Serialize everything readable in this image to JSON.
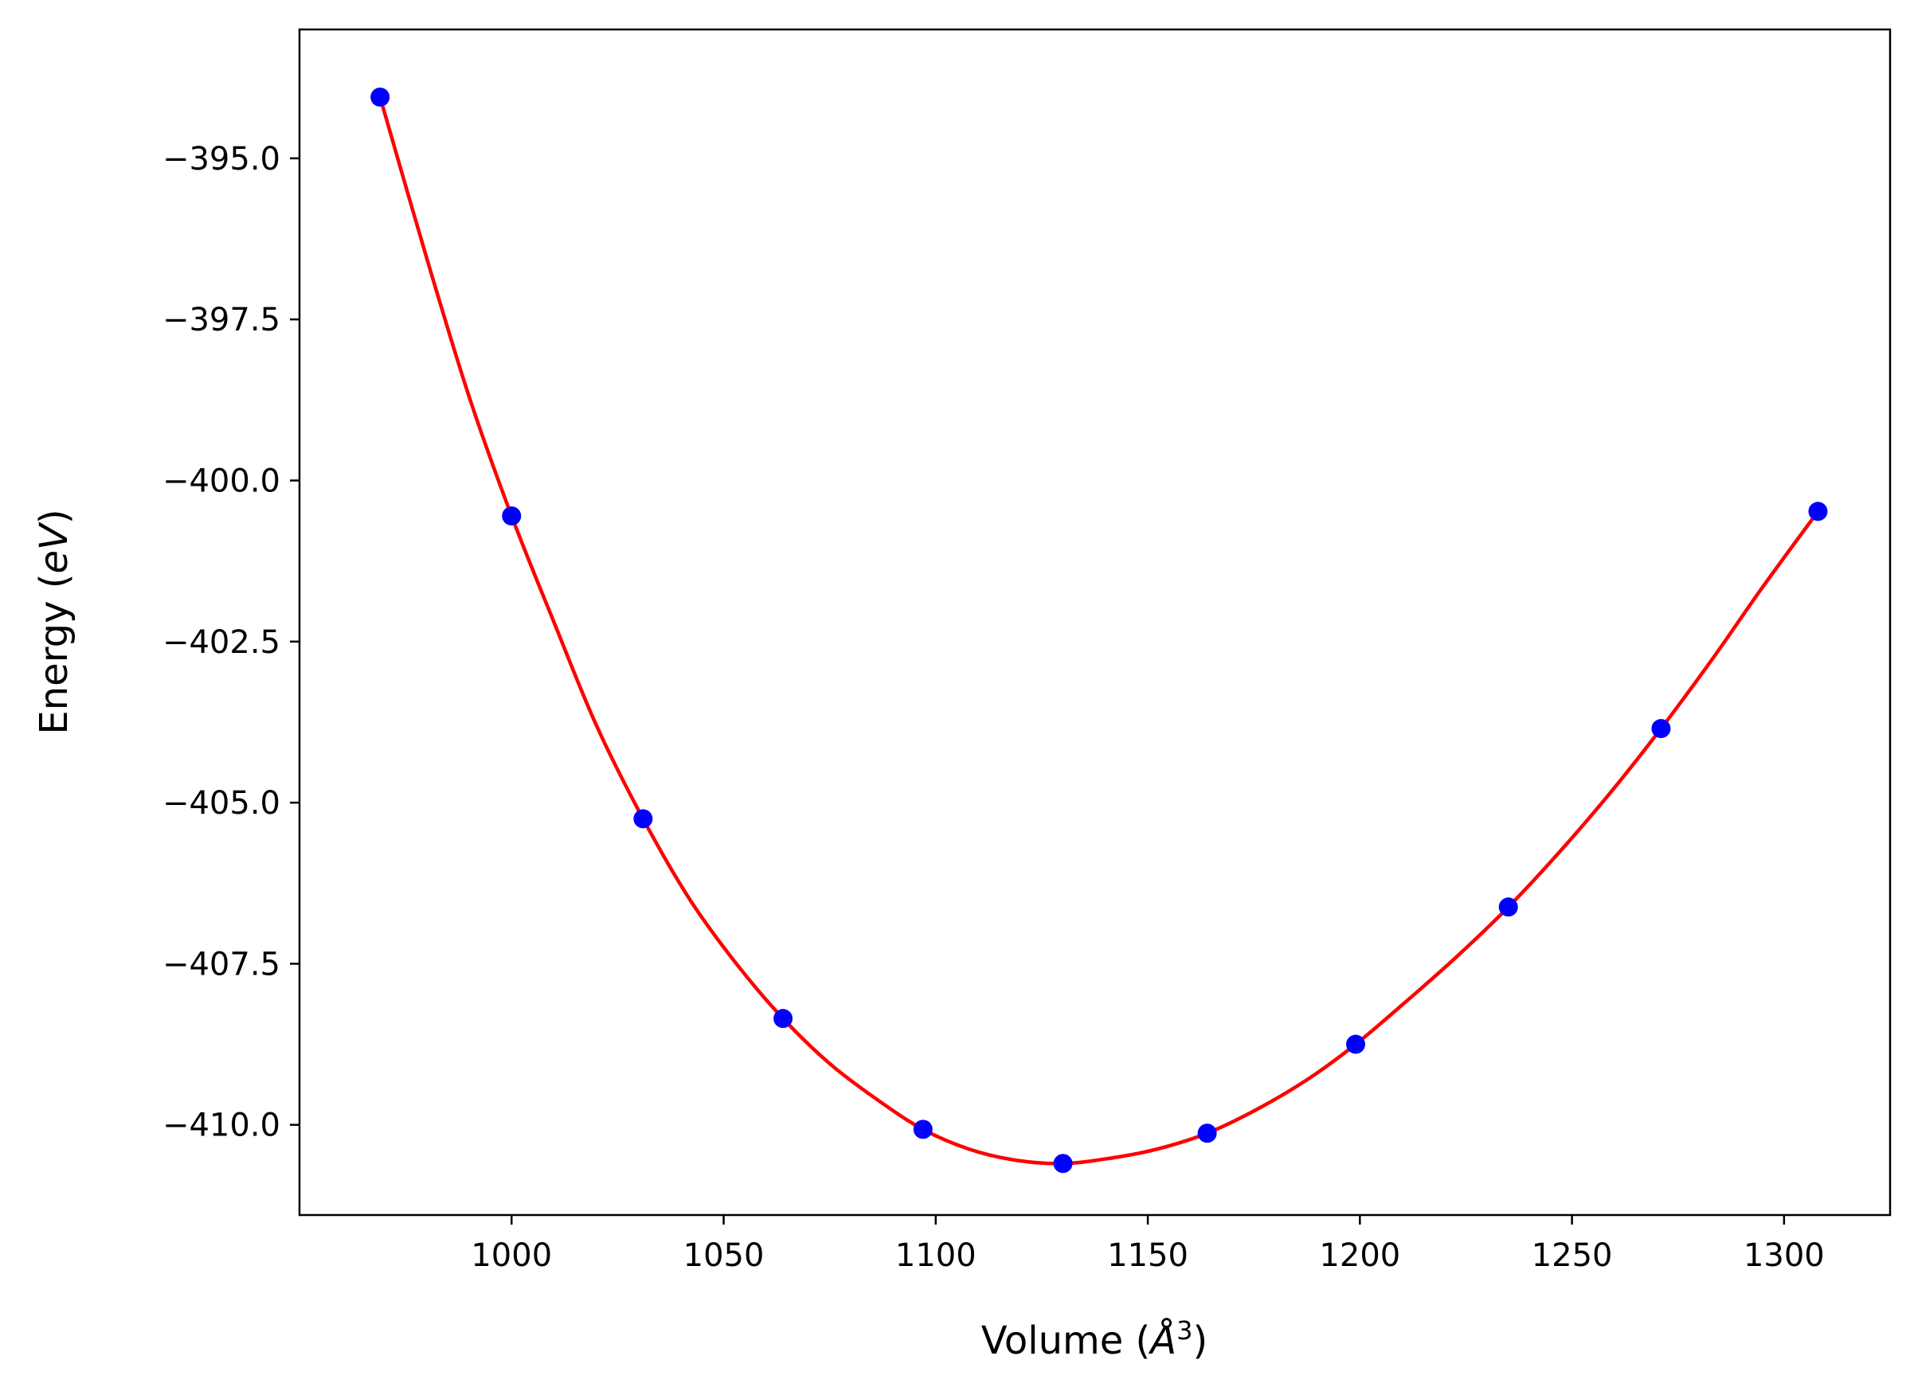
{
  "chart_data": {
    "type": "scatter",
    "xlabel": {
      "prefix": "Volume (",
      "italic": "Å",
      "superscript": "3",
      "suffix": ")"
    },
    "ylabel": {
      "prefix": "Energy (",
      "italic": "eV",
      "suffix": ")"
    },
    "xlim": [
      950,
      1325
    ],
    "ylim": [
      -411.4,
      -393.0
    ],
    "x_ticks": [
      1000,
      1050,
      1100,
      1150,
      1200,
      1250,
      1300
    ],
    "x_tick_labels": [
      "1000",
      "1050",
      "1100",
      "1150",
      "1200",
      "1250",
      "1300"
    ],
    "y_ticks": [
      -395.0,
      -397.5,
      -400.0,
      -402.5,
      -405.0,
      -407.5,
      -410.0
    ],
    "y_tick_labels": [
      "−395.0",
      "−397.5",
      "−400.0",
      "−402.5",
      "−405.0",
      "−407.5",
      "−410.0"
    ],
    "grid": false,
    "series": [
      {
        "kind": "points",
        "color": "#0000ff",
        "x": [
          969,
          1000,
          1031,
          1064,
          1097,
          1130,
          1164,
          1199,
          1235,
          1271,
          1308
        ],
        "y": [
          -394.05,
          -400.55,
          -405.25,
          -408.35,
          -410.07,
          -410.6,
          -410.13,
          -408.75,
          -406.62,
          -403.85,
          -400.48
        ]
      },
      {
        "kind": "fit-curve",
        "color": "#ff0000",
        "x": [
          969,
          980,
          990,
          1000,
          1010,
          1020,
          1031,
          1042,
          1053,
          1064,
          1075,
          1086,
          1097,
          1108,
          1119,
          1130,
          1141,
          1152,
          1164,
          1176,
          1188,
          1199,
          1211,
          1223,
          1235,
          1247,
          1259,
          1271,
          1283,
          1295,
          1308
        ],
        "y": [
          -394.05,
          -396.55,
          -398.7,
          -400.55,
          -402.2,
          -403.8,
          -405.25,
          -406.5,
          -407.5,
          -408.35,
          -409.05,
          -409.6,
          -410.07,
          -410.38,
          -410.55,
          -410.6,
          -410.52,
          -410.38,
          -410.13,
          -409.75,
          -409.28,
          -408.75,
          -408.08,
          -407.38,
          -406.62,
          -405.77,
          -404.85,
          -403.85,
          -402.78,
          -401.65,
          -400.48
        ]
      }
    ]
  }
}
